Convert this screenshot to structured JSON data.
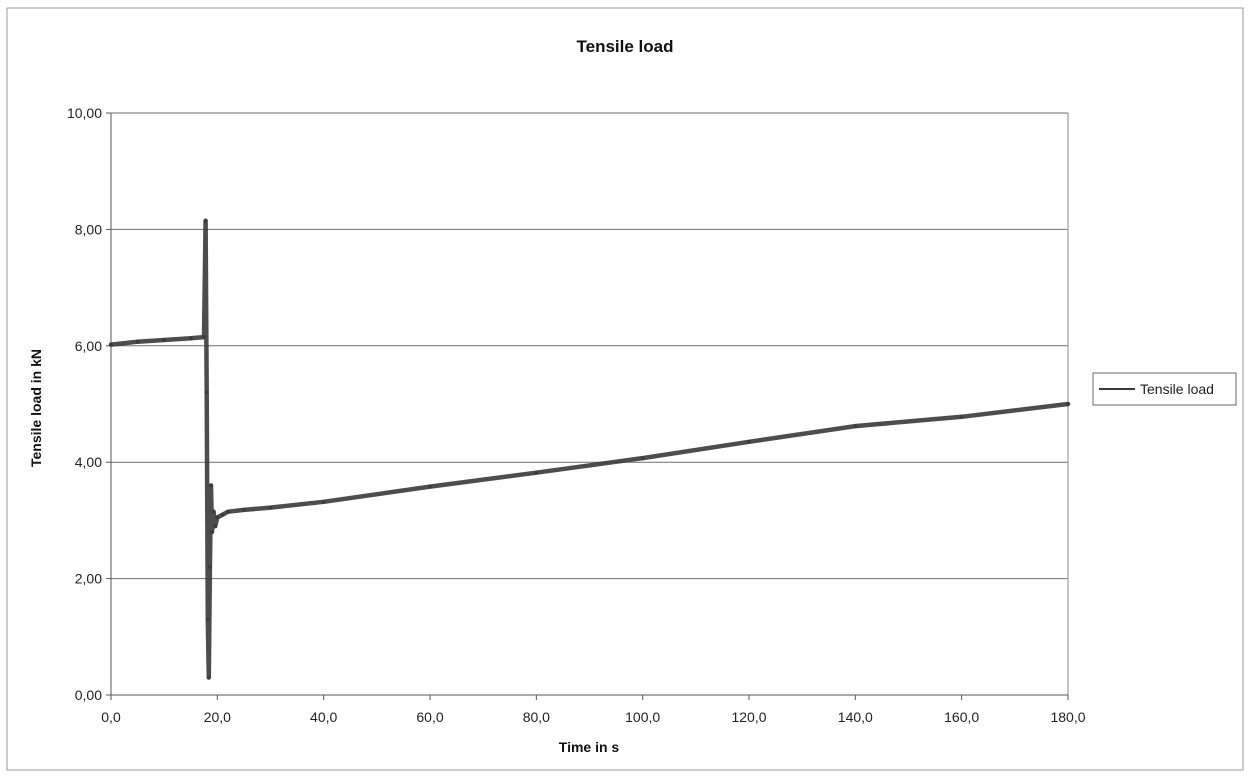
{
  "chart_data": {
    "type": "line",
    "title": "Tensile load",
    "xlabel": "Time in s",
    "ylabel": "Tensile load in kN",
    "xlim": [
      0,
      180
    ],
    "ylim": [
      0,
      10
    ],
    "x_ticks": [
      "0,0",
      "20,0",
      "40,0",
      "60,0",
      "80,0",
      "100,0",
      "120,0",
      "140,0",
      "160,0",
      "180,0"
    ],
    "y_ticks": [
      "0,00",
      "2,00",
      "4,00",
      "6,00",
      "8,00",
      "10,00"
    ],
    "grid": "horizontal",
    "legend_position": "right",
    "series": [
      {
        "name": "Tensile load",
        "color": "#3a3a3a",
        "x": [
          0,
          5,
          10,
          15,
          17.5,
          17.8,
          18.0,
          18.2,
          18.4,
          18.6,
          18.8,
          19.0,
          19.3,
          19.6,
          20,
          21,
          22,
          25,
          30,
          40,
          60,
          80,
          100,
          120,
          140,
          160,
          180
        ],
        "y": [
          6.02,
          6.07,
          6.1,
          6.13,
          6.15,
          8.15,
          5.2,
          1.3,
          0.3,
          2.2,
          3.6,
          2.8,
          3.15,
          2.9,
          3.05,
          3.1,
          3.15,
          3.18,
          3.22,
          3.32,
          3.58,
          3.82,
          4.07,
          4.35,
          4.62,
          4.78,
          5.0
        ]
      }
    ]
  }
}
